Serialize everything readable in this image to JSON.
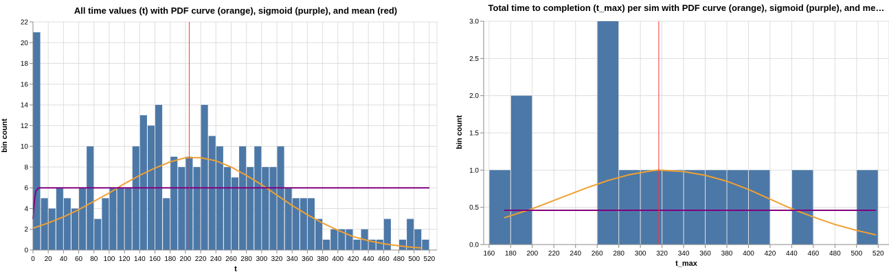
{
  "colors": {
    "bar": "#4c78a8",
    "pdf": "#f0a030",
    "sigmoid": "#800080",
    "mean": "#ff3333"
  },
  "chart_data": [
    {
      "type": "bar",
      "title": "All time values (t) with PDF curve (orange), sigmoid (purple), and mean (red)",
      "xlabel": "t",
      "ylabel": "bin count",
      "xlim": [
        0,
        530
      ],
      "ylim": [
        0,
        22
      ],
      "x_ticks": [
        0,
        20,
        40,
        60,
        80,
        100,
        120,
        140,
        160,
        180,
        200,
        220,
        240,
        260,
        280,
        300,
        320,
        340,
        360,
        380,
        400,
        420,
        440,
        460,
        480,
        500,
        520
      ],
      "y_ticks": [
        0,
        2,
        4,
        6,
        8,
        10,
        12,
        14,
        16,
        18,
        20,
        22
      ],
      "bin_width": 10,
      "bins": [
        {
          "x0": 0,
          "count": 21
        },
        {
          "x0": 10,
          "count": 5
        },
        {
          "x0": 20,
          "count": 4
        },
        {
          "x0": 30,
          "count": 6
        },
        {
          "x0": 40,
          "count": 5
        },
        {
          "x0": 50,
          "count": 4
        },
        {
          "x0": 60,
          "count": 6
        },
        {
          "x0": 70,
          "count": 10
        },
        {
          "x0": 80,
          "count": 3
        },
        {
          "x0": 90,
          "count": 5
        },
        {
          "x0": 100,
          "count": 6
        },
        {
          "x0": 110,
          "count": 6
        },
        {
          "x0": 120,
          "count": 6
        },
        {
          "x0": 130,
          "count": 10
        },
        {
          "x0": 140,
          "count": 13
        },
        {
          "x0": 150,
          "count": 12
        },
        {
          "x0": 160,
          "count": 14
        },
        {
          "x0": 170,
          "count": 5
        },
        {
          "x0": 180,
          "count": 9
        },
        {
          "x0": 190,
          "count": 8
        },
        {
          "x0": 200,
          "count": 9
        },
        {
          "x0": 210,
          "count": 8
        },
        {
          "x0": 220,
          "count": 14
        },
        {
          "x0": 230,
          "count": 11
        },
        {
          "x0": 240,
          "count": 10
        },
        {
          "x0": 250,
          "count": 8
        },
        {
          "x0": 260,
          "count": 7
        },
        {
          "x0": 270,
          "count": 10
        },
        {
          "x0": 280,
          "count": 8
        },
        {
          "x0": 290,
          "count": 10
        },
        {
          "x0": 300,
          "count": 8
        },
        {
          "x0": 310,
          "count": 8
        },
        {
          "x0": 320,
          "count": 10
        },
        {
          "x0": 330,
          "count": 6
        },
        {
          "x0": 340,
          "count": 5
        },
        {
          "x0": 350,
          "count": 5
        },
        {
          "x0": 360,
          "count": 5
        },
        {
          "x0": 370,
          "count": 3
        },
        {
          "x0": 380,
          "count": 1
        },
        {
          "x0": 390,
          "count": 2
        },
        {
          "x0": 400,
          "count": 2
        },
        {
          "x0": 410,
          "count": 2
        },
        {
          "x0": 420,
          "count": 1
        },
        {
          "x0": 430,
          "count": 2
        },
        {
          "x0": 440,
          "count": 1
        },
        {
          "x0": 450,
          "count": 1
        },
        {
          "x0": 460,
          "count": 3
        },
        {
          "x0": 470,
          "count": 0
        },
        {
          "x0": 480,
          "count": 1
        },
        {
          "x0": 490,
          "count": 3
        },
        {
          "x0": 500,
          "count": 2
        },
        {
          "x0": 510,
          "count": 1
        }
      ],
      "mean": 205,
      "pdf_curve": {
        "x": [
          0,
          20,
          40,
          60,
          80,
          100,
          120,
          140,
          160,
          180,
          200,
          220,
          240,
          260,
          280,
          300,
          320,
          340,
          360,
          380,
          400,
          420,
          440,
          460,
          480,
          500,
          510
        ],
        "y": [
          2.1,
          2.6,
          3.2,
          3.9,
          4.7,
          5.5,
          6.4,
          7.2,
          7.9,
          8.5,
          8.9,
          8.9,
          8.6,
          8.0,
          7.2,
          6.3,
          5.3,
          4.3,
          3.4,
          2.6,
          1.9,
          1.3,
          0.9,
          0.6,
          0.4,
          0.25,
          0.2
        ]
      },
      "sigmoid_curve": {
        "x": [
          0,
          1,
          2,
          3,
          4,
          6,
          8,
          12,
          20,
          520
        ],
        "y": [
          3.0,
          4.0,
          4.8,
          5.4,
          5.7,
          5.9,
          6.0,
          6.0,
          6.0,
          6.0
        ]
      }
    },
    {
      "type": "bar",
      "title": "Total time to completion (t_max) per sim with PDF curve (orange), sigmoid (purple), and me…",
      "xlabel": "t_max",
      "ylabel": "bin count",
      "xlim": [
        155,
        530
      ],
      "ylim": [
        0,
        3.0
      ],
      "x_ticks": [
        160,
        180,
        200,
        220,
        240,
        260,
        280,
        300,
        320,
        340,
        360,
        380,
        400,
        420,
        440,
        460,
        480,
        500,
        520
      ],
      "y_ticks": [
        0.0,
        0.5,
        1.0,
        1.5,
        2.0,
        2.5,
        3.0
      ],
      "y_tick_labels": [
        "0.0",
        "0.5",
        "1.0",
        "1.5",
        "2.0",
        "2.5",
        "3.0"
      ],
      "bin_width": 20,
      "bins": [
        {
          "x0": 160,
          "count": 1
        },
        {
          "x0": 180,
          "count": 2
        },
        {
          "x0": 260,
          "count": 3
        },
        {
          "x0": 280,
          "count": 1
        },
        {
          "x0": 300,
          "count": 1
        },
        {
          "x0": 320,
          "count": 1
        },
        {
          "x0": 340,
          "count": 1
        },
        {
          "x0": 360,
          "count": 1
        },
        {
          "x0": 380,
          "count": 1
        },
        {
          "x0": 400,
          "count": 1
        },
        {
          "x0": 440,
          "count": 1
        },
        {
          "x0": 500,
          "count": 1
        }
      ],
      "mean": 317,
      "pdf_curve": {
        "x": [
          174,
          200,
          225,
          250,
          270,
          290,
          310,
          317,
          340,
          360,
          380,
          400,
          420,
          440,
          460,
          480,
          500,
          518
        ],
        "y": [
          0.36,
          0.48,
          0.62,
          0.76,
          0.86,
          0.94,
          0.99,
          1.0,
          0.98,
          0.93,
          0.85,
          0.74,
          0.61,
          0.48,
          0.37,
          0.27,
          0.19,
          0.13
        ]
      },
      "sigmoid_curve": {
        "x": [
          174,
          518
        ],
        "y": [
          0.46,
          0.46
        ]
      }
    }
  ]
}
